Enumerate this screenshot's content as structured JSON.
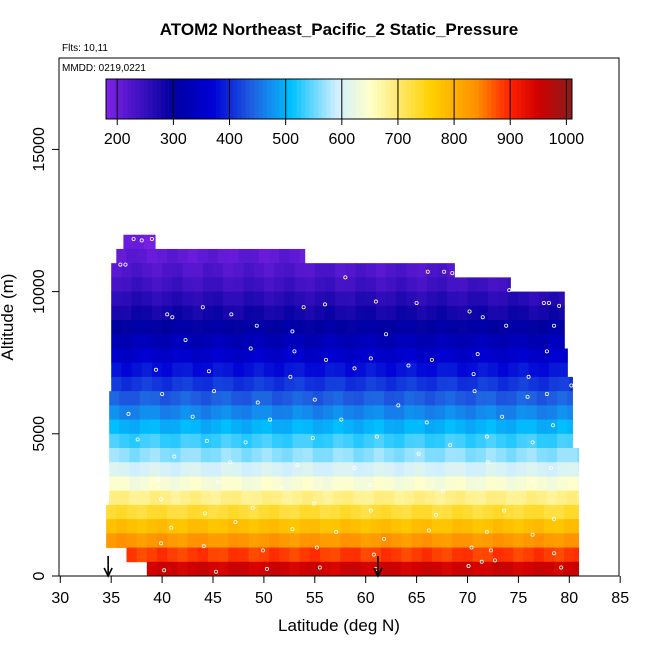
{
  "chart_data": {
    "type": "heatmap",
    "title": "ATOM2 Northeast_Pacific_2 Static_Pressure",
    "flights_label": "Flts: 10,11",
    "dates_label": "MMDD: 0219,0221",
    "xlabel": "Latitude (deg N)",
    "ylabel": "Altitude (m)",
    "xlim": [
      30,
      85
    ],
    "ylim": [
      0,
      17500
    ],
    "xticks": [
      30,
      35,
      40,
      45,
      50,
      55,
      60,
      65,
      70,
      75,
      80,
      85
    ],
    "yticks": [
      0,
      5000,
      10000,
      15000
    ],
    "colorbar": {
      "range": [
        180,
        1010
      ],
      "ticks": [
        200,
        300,
        400,
        500,
        600,
        700,
        800,
        900,
        1000
      ],
      "colors": [
        "#7f22e6",
        "#00009f",
        "#0000d6",
        "#2060e0",
        "#00c0ff",
        "#cfefff",
        "#ffffcc",
        "#ffd000",
        "#ff9000",
        "#ff2000",
        "#d00000",
        "#8c1c1c"
      ],
      "color_positions": [
        180,
        300,
        370,
        440,
        510,
        590,
        650,
        760,
        840,
        900,
        950,
        1010
      ]
    },
    "layer_thickness_m": 500,
    "bins": [
      {
        "alt": 11750,
        "lat_min": 36.2,
        "lat_max": 39.3,
        "pressure": 195
      },
      {
        "alt": 11250,
        "lat_min": 35.5,
        "lat_max": 54.0,
        "pressure": 210
      },
      {
        "alt": 10750,
        "lat_min": 35.0,
        "lat_max": 68.7,
        "pressure": 225
      },
      {
        "alt": 10250,
        "lat_min": 35.0,
        "lat_max": 74.2,
        "pressure": 240
      },
      {
        "alt": 9750,
        "lat_min": 35.0,
        "lat_max": 79.5,
        "pressure": 262
      },
      {
        "alt": 9250,
        "lat_min": 35.0,
        "lat_max": 79.5,
        "pressure": 282
      },
      {
        "alt": 8750,
        "lat_min": 35.0,
        "lat_max": 79.5,
        "pressure": 304
      },
      {
        "alt": 8250,
        "lat_min": 35.0,
        "lat_max": 79.5,
        "pressure": 330
      },
      {
        "alt": 7750,
        "lat_min": 35.0,
        "lat_max": 79.8,
        "pressure": 355
      },
      {
        "alt": 7250,
        "lat_min": 35.0,
        "lat_max": 79.8,
        "pressure": 382
      },
      {
        "alt": 6750,
        "lat_min": 35.0,
        "lat_max": 80.3,
        "pressure": 410
      },
      {
        "alt": 6250,
        "lat_min": 34.8,
        "lat_max": 80.3,
        "pressure": 438
      },
      {
        "alt": 5750,
        "lat_min": 34.8,
        "lat_max": 80.3,
        "pressure": 468
      },
      {
        "alt": 5250,
        "lat_min": 34.8,
        "lat_max": 80.3,
        "pressure": 500
      },
      {
        "alt": 4750,
        "lat_min": 34.8,
        "lat_max": 80.3,
        "pressure": 532
      },
      {
        "alt": 4250,
        "lat_min": 34.8,
        "lat_max": 80.9,
        "pressure": 565
      },
      {
        "alt": 3750,
        "lat_min": 34.8,
        "lat_max": 80.9,
        "pressure": 600
      },
      {
        "alt": 3250,
        "lat_min": 34.8,
        "lat_max": 80.9,
        "pressure": 640
      },
      {
        "alt": 2750,
        "lat_min": 34.8,
        "lat_max": 80.9,
        "pressure": 685
      },
      {
        "alt": 2250,
        "lat_min": 34.5,
        "lat_max": 80.9,
        "pressure": 730
      },
      {
        "alt": 1750,
        "lat_min": 34.5,
        "lat_max": 80.9,
        "pressure": 780
      },
      {
        "alt": 1250,
        "lat_min": 34.5,
        "lat_max": 80.9,
        "pressure": 830
      },
      {
        "alt": 750,
        "lat_min": 36.5,
        "lat_max": 80.9,
        "pressure": 885
      },
      {
        "alt": 250,
        "lat_min": 38.5,
        "lat_max": 80.9,
        "pressure": 950
      }
    ],
    "sample_points": [
      [
        37.2,
        11850
      ],
      [
        38.0,
        11800
      ],
      [
        39.0,
        11850
      ],
      [
        35.9,
        10950
      ],
      [
        36.4,
        10950
      ],
      [
        58.0,
        10500
      ],
      [
        66.1,
        10700
      ],
      [
        67.7,
        10700
      ],
      [
        68.5,
        10650
      ],
      [
        74.1,
        10050
      ],
      [
        77.5,
        9600
      ],
      [
        78.0,
        9600
      ],
      [
        79.0,
        9500
      ],
      [
        44.0,
        9450
      ],
      [
        53.9,
        9450
      ],
      [
        56.0,
        9550
      ],
      [
        61.0,
        9650
      ],
      [
        65.0,
        9600
      ],
      [
        70.2,
        9300
      ],
      [
        71.5,
        9100
      ],
      [
        46.8,
        9200
      ],
      [
        40.5,
        9200
      ],
      [
        41.0,
        9100
      ],
      [
        49.3,
        8800
      ],
      [
        52.8,
        8600
      ],
      [
        62.0,
        8500
      ],
      [
        73.8,
        8800
      ],
      [
        78.5,
        8800
      ],
      [
        42.3,
        8300
      ],
      [
        48.7,
        8000
      ],
      [
        53.0,
        7900
      ],
      [
        56.1,
        7600
      ],
      [
        60.5,
        7650
      ],
      [
        66.5,
        7600
      ],
      [
        71.0,
        7800
      ],
      [
        77.8,
        7900
      ],
      [
        39.4,
        7250
      ],
      [
        44.6,
        7200
      ],
      [
        52.6,
        7000
      ],
      [
        58.9,
        7300
      ],
      [
        64.2,
        7400
      ],
      [
        70.6,
        7100
      ],
      [
        76.0,
        7000
      ],
      [
        80.2,
        6700
      ],
      [
        40.0,
        6400
      ],
      [
        45.1,
        6500
      ],
      [
        49.4,
        6100
      ],
      [
        55.0,
        6200
      ],
      [
        63.2,
        6000
      ],
      [
        70.7,
        6500
      ],
      [
        75.9,
        6300
      ],
      [
        77.8,
        6400
      ],
      [
        36.7,
        5700
      ],
      [
        43.0,
        5600
      ],
      [
        50.6,
        5500
      ],
      [
        57.6,
        5500
      ],
      [
        66.0,
        5400
      ],
      [
        73.4,
        5600
      ],
      [
        78.4,
        5300
      ],
      [
        37.6,
        4800
      ],
      [
        44.4,
        4750
      ],
      [
        48.2,
        4700
      ],
      [
        54.8,
        4850
      ],
      [
        61.1,
        4900
      ],
      [
        68.3,
        4600
      ],
      [
        71.9,
        4900
      ],
      [
        76.4,
        4700
      ],
      [
        41.2,
        4200
      ],
      [
        46.7,
        4000
      ],
      [
        53.3,
        3900
      ],
      [
        58.9,
        3800
      ],
      [
        65.2,
        4300
      ],
      [
        72.0,
        4000
      ],
      [
        78.2,
        3800
      ],
      [
        39.6,
        3400
      ],
      [
        45.5,
        3300
      ],
      [
        51.7,
        3100
      ],
      [
        60.4,
        3200
      ],
      [
        67.6,
        3000
      ],
      [
        76.4,
        3300
      ],
      [
        39.9,
        2700
      ],
      [
        44.2,
        2200
      ],
      [
        48.9,
        2400
      ],
      [
        54.9,
        2550
      ],
      [
        60.5,
        2300
      ],
      [
        66.9,
        2150
      ],
      [
        73.6,
        2300
      ],
      [
        78.5,
        2000
      ],
      [
        40.9,
        1700
      ],
      [
        47.2,
        1900
      ],
      [
        52.8,
        1650
      ],
      [
        57.1,
        1550
      ],
      [
        61.8,
        1300
      ],
      [
        66.2,
        1600
      ],
      [
        71.9,
        1550
      ],
      [
        76.4,
        1450
      ],
      [
        39.9,
        1150
      ],
      [
        44.1,
        1050
      ],
      [
        49.9,
        900
      ],
      [
        55.2,
        1000
      ],
      [
        60.8,
        750
      ],
      [
        70.4,
        1000
      ],
      [
        72.3,
        900
      ],
      [
        78.5,
        800
      ],
      [
        40.2,
        200
      ],
      [
        45.3,
        150
      ],
      [
        50.3,
        250
      ],
      [
        55.5,
        300
      ],
      [
        61.0,
        250
      ],
      [
        70.1,
        350
      ],
      [
        71.4,
        500
      ],
      [
        72.7,
        550
      ],
      [
        79.2,
        300
      ]
    ],
    "arrows": [
      {
        "lat": 34.7,
        "label": "flight-start-arrow"
      },
      {
        "lat": 61.2,
        "label": "flight-end-arrow"
      }
    ]
  }
}
